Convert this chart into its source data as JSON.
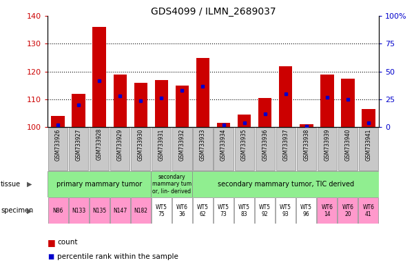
{
  "title": "GDS4099 / ILMN_2689037",
  "samples": [
    "GSM733926",
    "GSM733927",
    "GSM733928",
    "GSM733929",
    "GSM733930",
    "GSM733931",
    "GSM733932",
    "GSM733933",
    "GSM733934",
    "GSM733935",
    "GSM733936",
    "GSM733937",
    "GSM733938",
    "GSM733939",
    "GSM733940",
    "GSM733941"
  ],
  "counts": [
    104,
    112,
    136,
    119,
    116,
    117,
    115,
    125,
    101.5,
    104.5,
    110.5,
    122,
    101,
    119,
    117.5,
    106.5
  ],
  "percentile_ranks": [
    2,
    20,
    42,
    28,
    24,
    26,
    33,
    37,
    2,
    4,
    12,
    30,
    1,
    27,
    25,
    4
  ],
  "ylim_left": [
    100,
    140
  ],
  "ylim_right": [
    0,
    100
  ],
  "yticks_left": [
    100,
    110,
    120,
    130,
    140
  ],
  "yticks_right": [
    0,
    25,
    50,
    75,
    100
  ],
  "ytick_labels_right": [
    "0",
    "25",
    "50",
    "75",
    "100%"
  ],
  "bar_color": "#CC0000",
  "dot_color": "#0000CC",
  "tick_label_color_left": "#CC0000",
  "tick_label_color_right": "#0000CC",
  "xticklabel_bg": "#C8C8C8",
  "tissue_color": "#90EE90",
  "specimen_pink": "#FF99CC",
  "specimen_white": "#FFFFFF",
  "specimen_labels": [
    "N86",
    "N133",
    "N135",
    "N147",
    "N182",
    "WT5\n75",
    "WT6\n36",
    "WT5\n62",
    "WT5\n73",
    "WT5\n83",
    "WT5\n92",
    "WT5\n93",
    "WT5\n96",
    "WT6\n14",
    "WT6\n20",
    "WT6\n41"
  ],
  "specimen_pink_indices": [
    0,
    1,
    2,
    3,
    4,
    13,
    14,
    15
  ]
}
